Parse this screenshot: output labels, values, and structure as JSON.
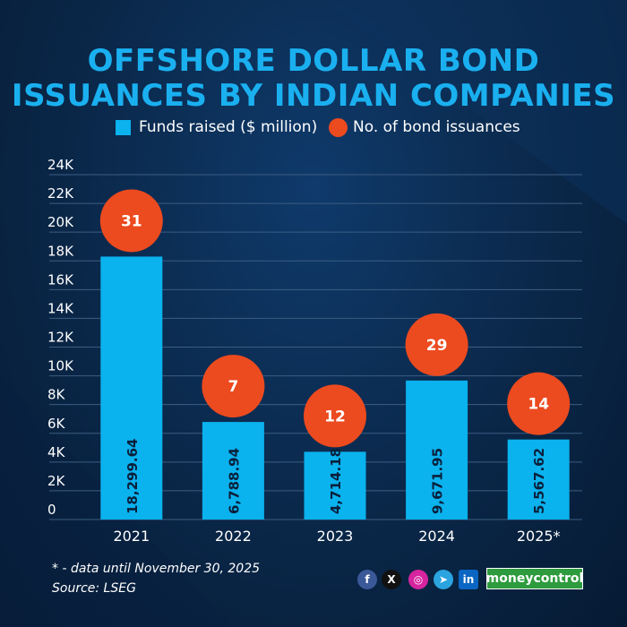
{
  "title_line1": "OFFSHORE DOLLAR BOND",
  "title_line2": "ISSUANCES BY INDIAN COMPANIES",
  "legend": {
    "bar_label": "Funds raised ($ million)",
    "dot_label": "No. of bond issuances"
  },
  "colors": {
    "bar": "#0ab2ee",
    "dot": "#ec4a1f",
    "title": "#1ab0f0",
    "brand": "#2e9b3e"
  },
  "chart_data": {
    "type": "bar",
    "categories": [
      "2021",
      "2022",
      "2023",
      "2024",
      "2025*"
    ],
    "series": [
      {
        "name": "Funds raised ($ million)",
        "values": [
          18299.64,
          6788.94,
          4714.18,
          9671.95,
          5567.62
        ],
        "labels": [
          "18,299.64",
          "6,788.94",
          "4,714.18",
          "9,671.95",
          "5,567.62"
        ]
      },
      {
        "name": "No. of bond issuances",
        "values": [
          31,
          7,
          12,
          29,
          14
        ],
        "labels": [
          "31",
          "7",
          "12",
          "29",
          "14"
        ]
      }
    ],
    "ylim": [
      0,
      24000
    ],
    "yticks": [
      0,
      2000,
      4000,
      6000,
      8000,
      10000,
      12000,
      14000,
      16000,
      18000,
      20000,
      22000,
      24000
    ],
    "ytick_labels": [
      "0",
      "2K",
      "4K",
      "6K",
      "8K",
      "10K",
      "12K",
      "14K",
      "16K",
      "18K",
      "20K",
      "22K",
      "24K"
    ],
    "grid": true,
    "legend_position": "top"
  },
  "footnotes": {
    "note": "* - data until November 30, 2025",
    "source": "Source:   LSEG"
  },
  "social_icons": [
    "facebook-icon",
    "x-icon",
    "instagram-icon",
    "telegram-icon",
    "linkedin-icon"
  ],
  "brand": "moneycontrol"
}
